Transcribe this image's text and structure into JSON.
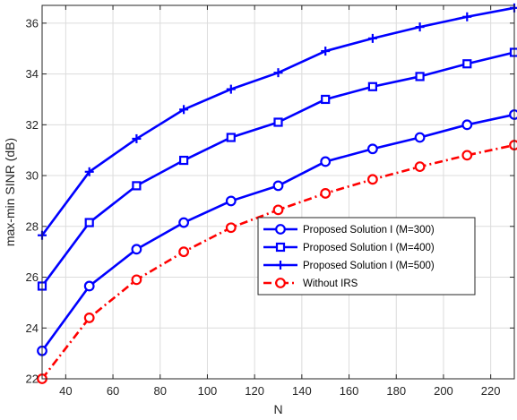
{
  "chart_data": {
    "type": "line",
    "title": "",
    "xlabel": "N",
    "ylabel": "max-min SINR (dB)",
    "xlim": [
      30,
      230
    ],
    "ylim": [
      22,
      36.7
    ],
    "xticks": [
      40,
      60,
      80,
      100,
      120,
      140,
      160,
      180,
      200,
      220
    ],
    "yticks": [
      22,
      24,
      26,
      28,
      30,
      32,
      34,
      36
    ],
    "grid": true,
    "legend_position": "center-right",
    "x": [
      30,
      50,
      70,
      90,
      110,
      130,
      150,
      170,
      190,
      210,
      230
    ],
    "series": [
      {
        "name": "Proposed Solution I (M=300)",
        "color": "#0000ff",
        "line_style": "solid",
        "marker": "circle",
        "values": [
          23.1,
          25.65,
          27.1,
          28.15,
          29.0,
          29.6,
          30.55,
          31.05,
          31.5,
          32.0,
          32.4
        ]
      },
      {
        "name": "Proposed Solution I (M=400)",
        "color": "#0000ff",
        "line_style": "solid",
        "marker": "square",
        "values": [
          25.65,
          28.15,
          29.6,
          30.6,
          31.5,
          32.1,
          33.0,
          33.5,
          33.9,
          34.4,
          34.85
        ]
      },
      {
        "name": "Proposed Solution I (M=500)",
        "color": "#0000ff",
        "line_style": "solid",
        "marker": "plus",
        "values": [
          27.65,
          30.15,
          31.45,
          32.6,
          33.4,
          34.05,
          34.9,
          35.4,
          35.85,
          36.25,
          36.6
        ]
      },
      {
        "name": "Without IRS",
        "color": "#ff0000",
        "line_style": "dashdot",
        "marker": "circle",
        "values": [
          22.0,
          24.4,
          25.9,
          27.0,
          27.95,
          28.65,
          29.3,
          29.85,
          30.35,
          30.8,
          31.2
        ]
      }
    ]
  }
}
